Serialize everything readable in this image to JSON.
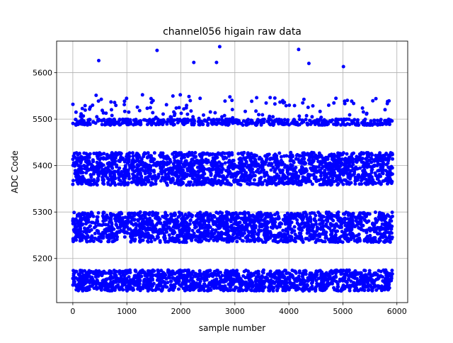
{
  "chart_data": {
    "type": "scatter",
    "title": "channel056 higain raw data",
    "xlabel": "sample number",
    "ylabel": "ADC Code",
    "xlim": [
      -300,
      6200
    ],
    "ylim": [
      5105,
      5668
    ],
    "grid": true,
    "marker_color": "#0000ff",
    "x_ticks": [
      0,
      1000,
      2000,
      3000,
      4000,
      5000,
      6000
    ],
    "x_tick_labels": [
      "0",
      "1000",
      "2000",
      "3000",
      "4000",
      "5000",
      "6000"
    ],
    "y_ticks": [
      5200,
      5300,
      5400,
      5500,
      5600
    ],
    "y_tick_labels": [
      "5200",
      "5300",
      "5400",
      "5500",
      "5600"
    ],
    "sample_range": [
      0,
      5920
    ],
    "bands": [
      {
        "min": 5130,
        "max": 5175,
        "count": 1500
      },
      {
        "min": 5235,
        "max": 5300,
        "count": 1800
      },
      {
        "min": 5358,
        "max": 5428,
        "count": 1900
      },
      {
        "min": 5487,
        "max": 5500,
        "count": 500
      },
      {
        "min": 5500,
        "max": 5553,
        "count": 120
      }
    ],
    "outliers": [
      {
        "x": 480,
        "y": 5626
      },
      {
        "x": 1560,
        "y": 5648
      },
      {
        "x": 2240,
        "y": 5622
      },
      {
        "x": 2660,
        "y": 5622
      },
      {
        "x": 2720,
        "y": 5656
      },
      {
        "x": 4180,
        "y": 5650
      },
      {
        "x": 4370,
        "y": 5620
      },
      {
        "x": 5010,
        "y": 5613
      }
    ]
  }
}
